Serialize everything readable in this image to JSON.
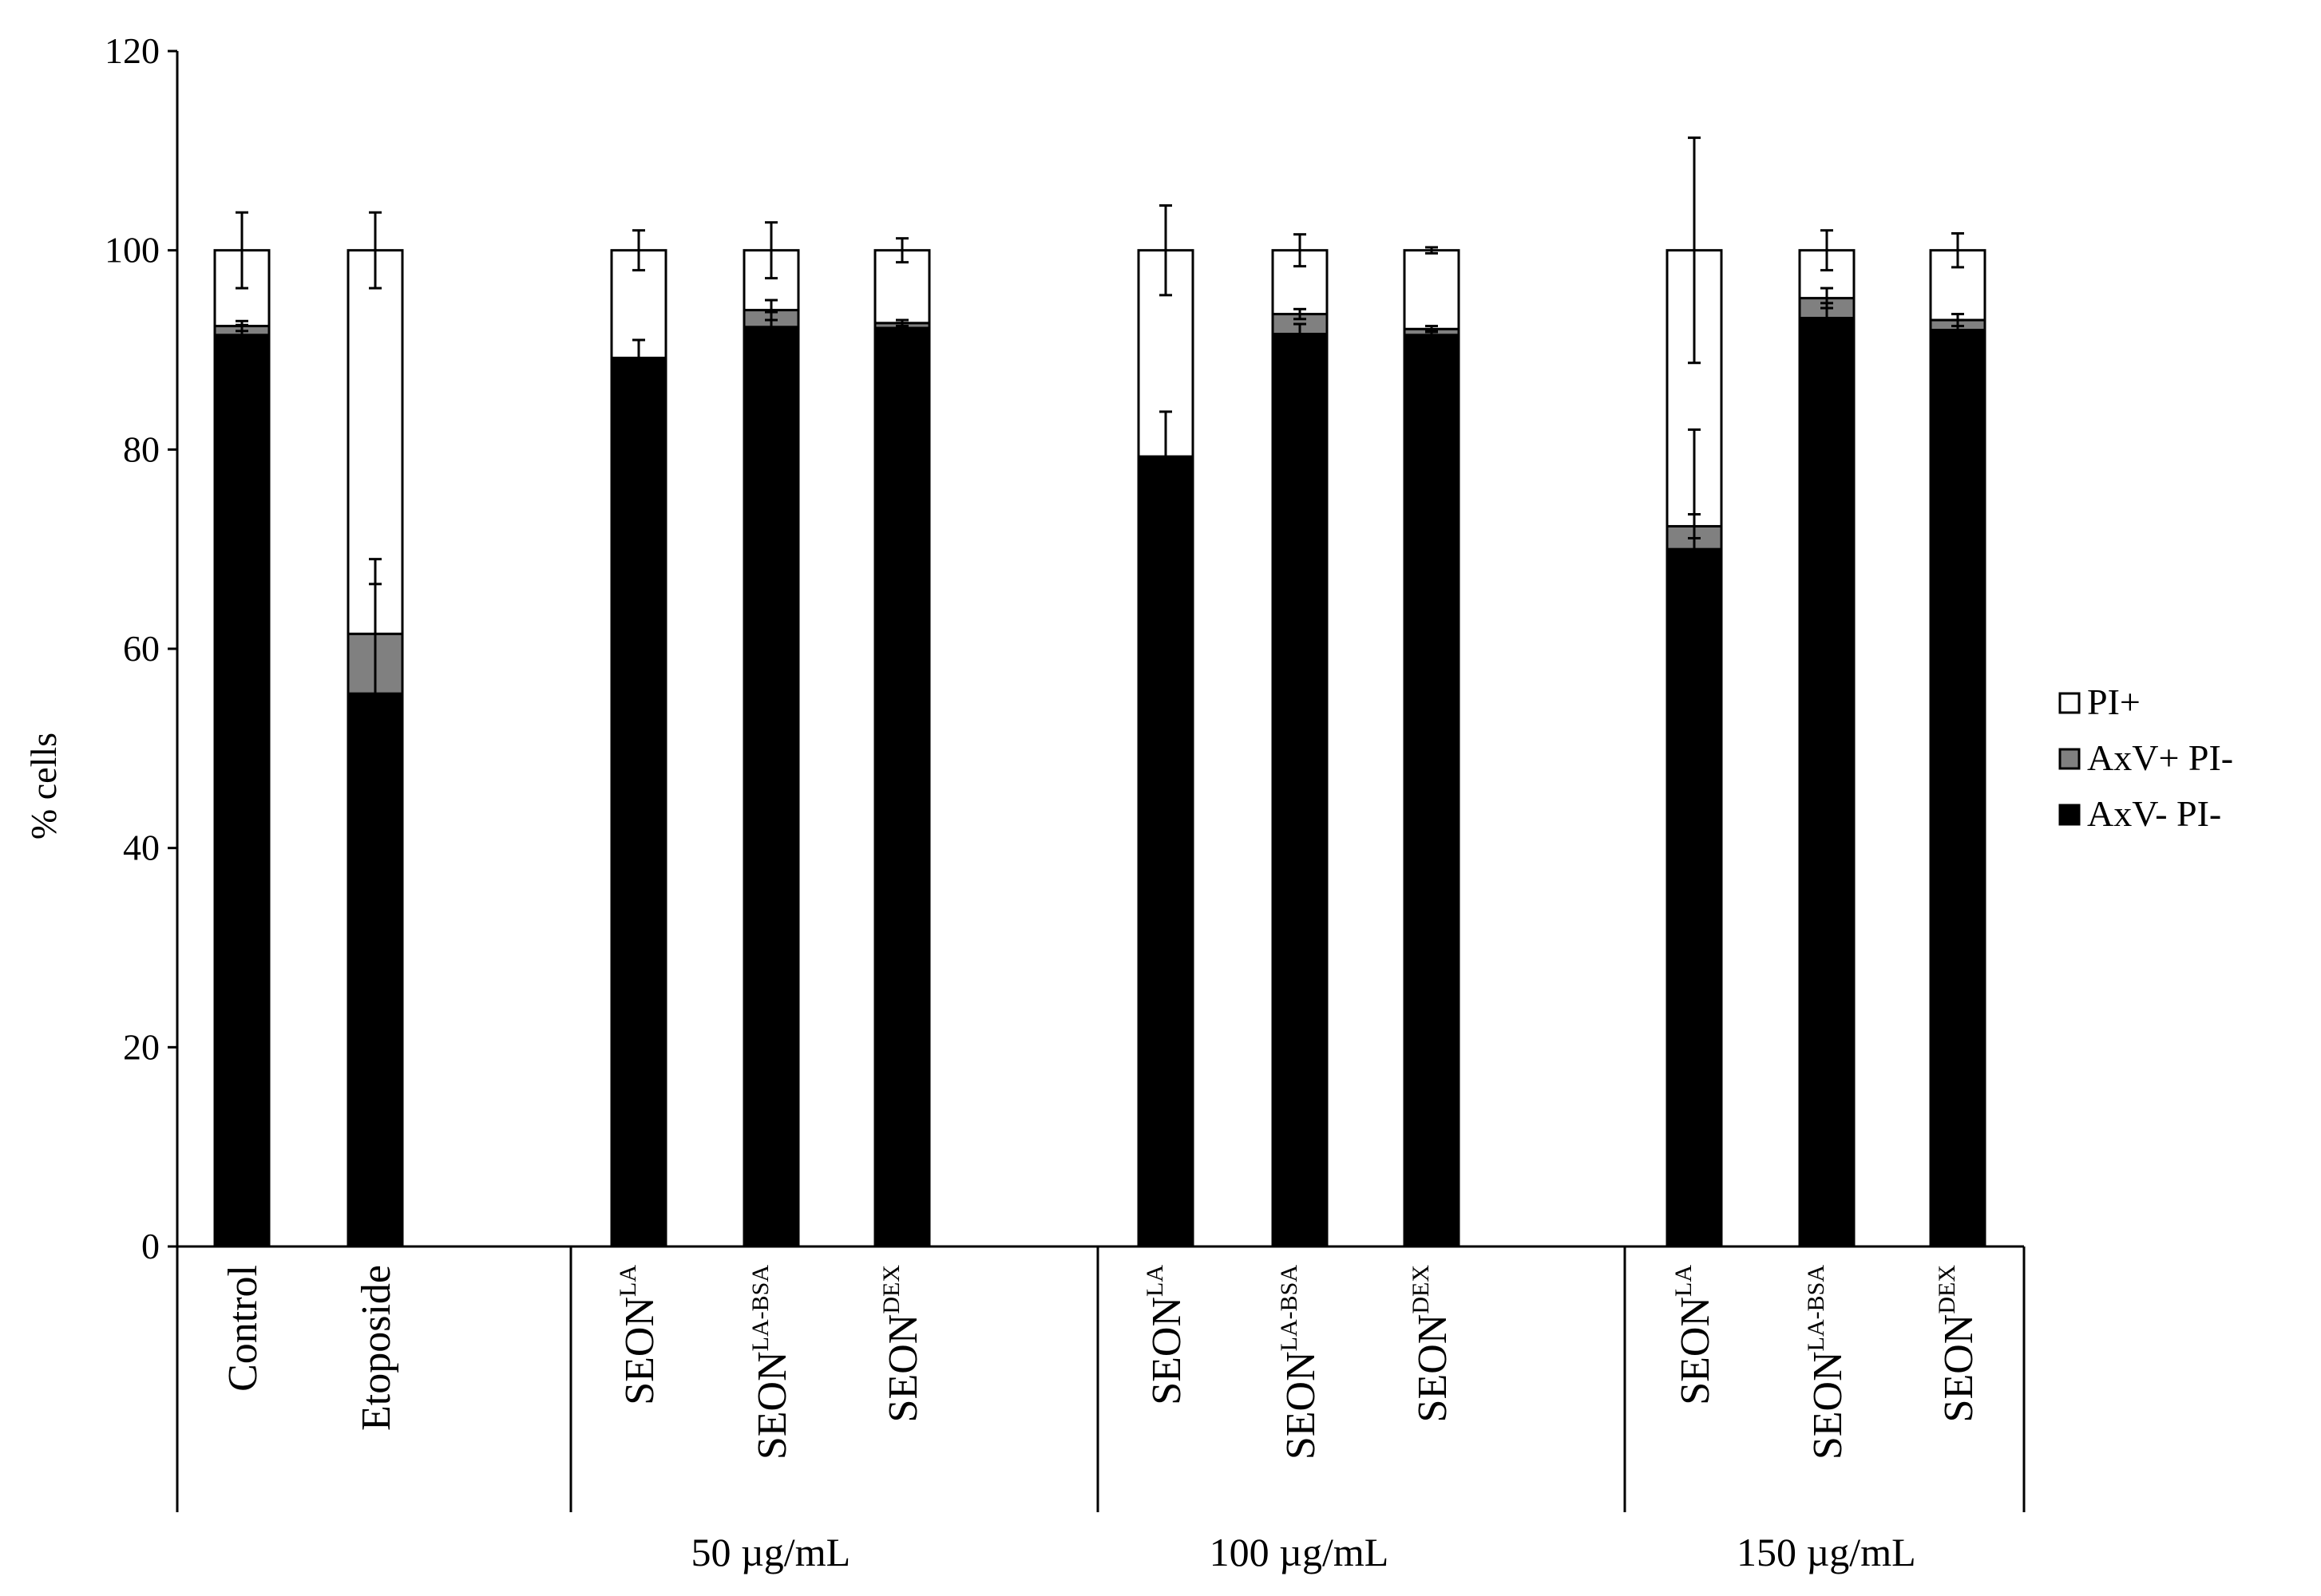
{
  "chart_data": {
    "type": "bar",
    "stacked": true,
    "ylabel": "% cells",
    "ylim": [
      0,
      120
    ],
    "yticks": [
      0,
      20,
      40,
      60,
      80,
      100,
      120
    ],
    "grid": false,
    "legend_position": "right",
    "categories": [
      {
        "base": "Control",
        "sup": ""
      },
      {
        "base": "Etoposide",
        "sup": ""
      },
      {
        "base": "SEON",
        "sup": "LA"
      },
      {
        "base": "SEON",
        "sup": "LA-BSA"
      },
      {
        "base": "SEON",
        "sup": "DEX"
      },
      {
        "base": "SEON",
        "sup": "LA"
      },
      {
        "base": "SEON",
        "sup": "LA-BSA"
      },
      {
        "base": "SEON",
        "sup": "DEX"
      },
      {
        "base": "SEON",
        "sup": "LA"
      },
      {
        "base": "SEON",
        "sup": "LA-BSA"
      },
      {
        "base": "SEON",
        "sup": "DEX"
      }
    ],
    "groups": [
      {
        "label": "",
        "members": [
          0,
          1
        ]
      },
      {
        "label": "50 µg/mL",
        "members": [
          2,
          3,
          4
        ]
      },
      {
        "label": "100 µg/mL",
        "members": [
          5,
          6,
          7
        ]
      },
      {
        "label": "150 µg/mL",
        "members": [
          8,
          9,
          10
        ]
      }
    ],
    "series": [
      {
        "name": "AxV- PI-",
        "color": "#000000",
        "values": [
          91.5,
          55.5,
          89.2,
          92.3,
          92.2,
          79.3,
          91.6,
          91.5,
          70.0,
          93.2,
          92.0
        ],
        "errors": [
          1.0,
          11.0,
          1.8,
          1.5,
          0.5,
          4.5,
          1.0,
          0.5,
          12.0,
          1.5,
          1.0
        ]
      },
      {
        "name": "AxV+ PI-",
        "color": "#808080",
        "values": [
          0.9,
          6.0,
          0.0,
          1.7,
          0.5,
          0.0,
          2.0,
          0.6,
          2.3,
          2.0,
          1.0
        ],
        "errors": [
          0.5,
          7.5,
          0.0,
          1.0,
          0.3,
          0.0,
          0.5,
          0.3,
          1.2,
          1.0,
          0.6
        ]
      },
      {
        "name": "PI+",
        "color": "#ffffff",
        "values": [
          7.6,
          38.5,
          10.8,
          6.0,
          7.3,
          20.7,
          6.4,
          7.9,
          27.7,
          4.8,
          7.0
        ],
        "errors": [
          3.8,
          3.8,
          2.0,
          2.8,
          1.2,
          4.5,
          1.6,
          0.3,
          11.3,
          2.0,
          1.7
        ]
      }
    ]
  }
}
